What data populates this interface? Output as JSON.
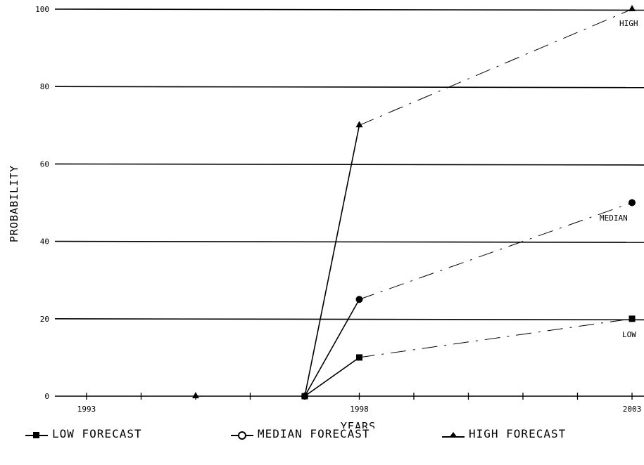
{
  "chart_data": {
    "type": "line",
    "xlabel": "YEARS",
    "ylabel": "PROBABILITY",
    "xlim": [
      1993,
      2003
    ],
    "ylim": [
      0,
      100
    ],
    "x_ticks": [
      1993,
      1998,
      2003
    ],
    "y_ticks": [
      0,
      20,
      40,
      60,
      80,
      100
    ],
    "grid": "horizontal",
    "series": [
      {
        "name": "LOW FORECAST",
        "marker": "square",
        "points": [
          [
            1997,
            0
          ],
          [
            1998,
            10
          ],
          [
            2003,
            20
          ]
        ],
        "end_label": "LOW"
      },
      {
        "name": "MEDIAN FORECAST",
        "marker": "circle",
        "points": [
          [
            1997,
            0
          ],
          [
            1998,
            25
          ],
          [
            2003,
            50
          ]
        ],
        "end_label": "MEDIAN"
      },
      {
        "name": "HIGH FORECAST",
        "marker": "triangle",
        "points": [
          [
            1995,
            0
          ],
          [
            1997,
            0
          ],
          [
            1998,
            70
          ],
          [
            2003,
            100
          ]
        ],
        "end_label": "HIGH"
      }
    ],
    "legend_position": "bottom"
  },
  "legend": {
    "low": "LOW FORECAST",
    "median": "MEDIAN FORECAST",
    "high": "HIGH FORECAST"
  },
  "end_labels": {
    "low": "LOW",
    "median": "MEDIAN",
    "high": "HIGH"
  }
}
